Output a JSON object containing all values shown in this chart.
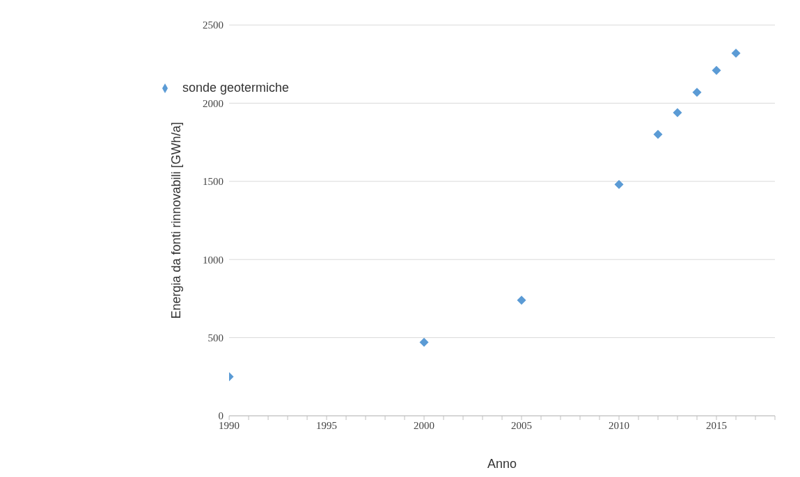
{
  "chart_data": {
    "type": "scatter",
    "xlabel": "Anno",
    "ylabel": "Energia da fonti rinnovabili [GWh/a]",
    "x": [
      1990,
      2000,
      2005,
      2010,
      2012,
      2013,
      2014,
      2015,
      2016
    ],
    "series": [
      {
        "name": "sonde geotermiche",
        "color": "#5b9bd5",
        "values": [
          250,
          470,
          740,
          1480,
          1800,
          1940,
          2070,
          2210,
          2320
        ]
      }
    ],
    "xlim": [
      1990,
      2018
    ],
    "xticks": [
      1990,
      {
        "value": 1991,
        "label": null
      },
      {
        "value": 1992,
        "label": null
      },
      {
        "value": 1993,
        "label": null
      },
      {
        "value": 1994,
        "label": null
      },
      1995,
      {
        "value": 1996,
        "label": null
      },
      {
        "value": 1997,
        "label": null
      },
      {
        "value": 1998,
        "label": null
      },
      {
        "value": 1999,
        "label": null
      },
      2000,
      {
        "value": 2001,
        "label": null
      },
      {
        "value": 2002,
        "label": null
      },
      {
        "value": 2003,
        "label": null
      },
      {
        "value": 2004,
        "label": null
      },
      2005,
      {
        "value": 2006,
        "label": null
      },
      {
        "value": 2007,
        "label": null
      },
      {
        "value": 2008,
        "label": null
      },
      {
        "value": 2009,
        "label": null
      },
      2010,
      {
        "value": 2011,
        "label": null
      },
      {
        "value": 2012,
        "label": null
      },
      {
        "value": 2013,
        "label": null
      },
      {
        "value": 2014,
        "label": null
      },
      2015,
      {
        "value": 2016,
        "label": null
      },
      {
        "value": 2017,
        "label": null
      },
      {
        "value": 2018,
        "label": null
      }
    ],
    "ylim": [
      0,
      2500
    ],
    "yticks": [
      0,
      500,
      1000,
      1500,
      2000,
      2500
    ],
    "grid": "y",
    "legend": "top left",
    "marker": "diamond"
  }
}
